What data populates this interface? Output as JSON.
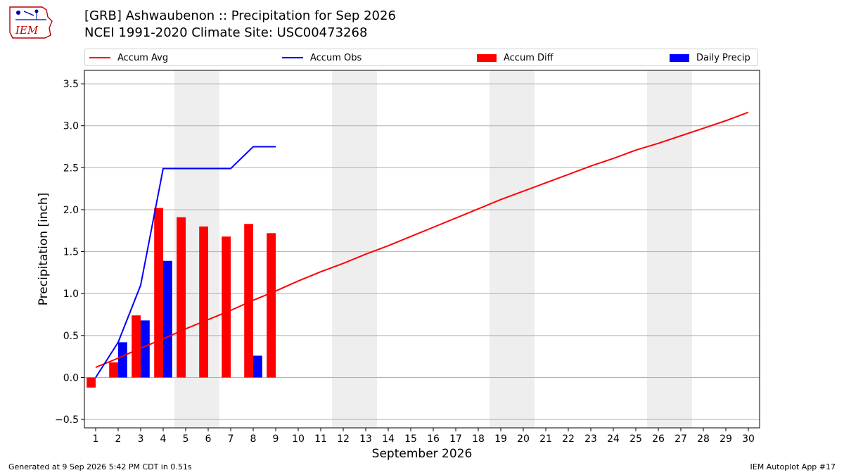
{
  "header": {
    "logo_text": "IEM",
    "title_line1": "[GRB] Ashwaubenon :: Precipitation for Sep 2026",
    "title_line2": "NCEI 1991-2020 Climate Site: USC00473268"
  },
  "legend": [
    {
      "label": "Accum Avg",
      "kind": "line",
      "color": "#ff0000"
    },
    {
      "label": "Accum Obs",
      "kind": "line",
      "color": "#0000ff"
    },
    {
      "label": "Accum Diff",
      "kind": "patch",
      "color": "#ff0000"
    },
    {
      "label": "Daily Precip",
      "kind": "patch",
      "color": "#0000ff"
    }
  ],
  "chart_data": {
    "type": "bar",
    "xlabel": "September 2026",
    "ylabel": "Precipitation [inch]",
    "xlim": [
      0.5,
      30.5
    ],
    "ylim": [
      -0.6,
      3.66
    ],
    "yticks": [
      -0.5,
      0.0,
      0.5,
      1.0,
      1.5,
      2.0,
      2.5,
      3.0,
      3.5
    ],
    "ytick_labels": [
      "−0.5",
      "0.0",
      "0.5",
      "1.0",
      "1.5",
      "2.0",
      "2.5",
      "3.0",
      "3.5"
    ],
    "xticks": [
      1,
      2,
      3,
      4,
      5,
      6,
      7,
      8,
      9,
      10,
      11,
      12,
      13,
      14,
      15,
      16,
      17,
      18,
      19,
      20,
      21,
      22,
      23,
      24,
      25,
      26,
      27,
      28,
      29,
      30
    ],
    "grid": "horizontal",
    "weekend_spans": [
      [
        4.5,
        6.5
      ],
      [
        11.5,
        13.5
      ],
      [
        18.5,
        20.5
      ],
      [
        25.5,
        27.5
      ]
    ],
    "series": [
      {
        "name": "Accum Avg",
        "type": "line",
        "color": "#ff0000",
        "x": [
          1,
          2,
          3,
          4,
          5,
          6,
          7,
          8,
          9,
          10,
          11,
          12,
          13,
          14,
          15,
          16,
          17,
          18,
          19,
          20,
          21,
          22,
          23,
          24,
          25,
          26,
          27,
          28,
          29,
          30
        ],
        "values": [
          0.12,
          0.23,
          0.35,
          0.46,
          0.58,
          0.69,
          0.8,
          0.92,
          1.03,
          1.15,
          1.26,
          1.36,
          1.47,
          1.57,
          1.68,
          1.79,
          1.9,
          2.01,
          2.12,
          2.22,
          2.32,
          2.42,
          2.52,
          2.61,
          2.71,
          2.79,
          2.88,
          2.97,
          3.06,
          3.16
        ]
      },
      {
        "name": "Accum Obs",
        "type": "line",
        "color": "#0000ff",
        "x": [
          1,
          2,
          3,
          4,
          5,
          6,
          7,
          8,
          9
        ],
        "values": [
          0.0,
          0.42,
          1.1,
          2.49,
          2.49,
          2.49,
          2.49,
          2.75,
          2.75
        ]
      },
      {
        "name": "Accum Diff",
        "type": "bar",
        "color": "#ff0000",
        "x": [
          1,
          2,
          3,
          4,
          5,
          6,
          7,
          8,
          9
        ],
        "values": [
          -0.12,
          0.18,
          0.74,
          2.02,
          1.91,
          1.8,
          1.68,
          1.83,
          1.72
        ]
      },
      {
        "name": "Daily Precip",
        "type": "bar",
        "color": "#0000ff",
        "x": [
          1,
          2,
          3,
          4,
          5,
          6,
          7,
          8,
          9
        ],
        "values": [
          0.0,
          0.42,
          0.68,
          1.39,
          0.0,
          0.0,
          0.0,
          0.26,
          0.0
        ]
      }
    ]
  },
  "footer": {
    "generated": "Generated at 9 Sep 2026 5:42 PM CDT in 0.51s",
    "app": "IEM Autoplot App #17"
  }
}
